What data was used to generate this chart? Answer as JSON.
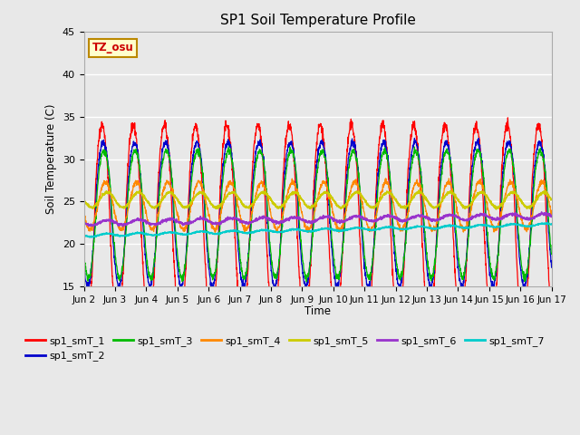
{
  "title": "SP1 Soil Temperature Profile",
  "xlabel": "Time",
  "ylabel": "Soil Temperature (C)",
  "ylim": [
    15,
    45
  ],
  "xlim": [
    0,
    15
  ],
  "x_tick_labels": [
    "Jun 2",
    "Jun 3",
    "Jun 4",
    "Jun 5",
    "Jun 6",
    "Jun 7",
    "Jun 8",
    "Jun 9",
    "Jun 10",
    "Jun 11",
    "Jun 12",
    "Jun 13",
    "Jun 14",
    "Jun 15",
    "Jun 16",
    "Jun 17"
  ],
  "annotation_text": "TZ_osu",
  "annotation_color": "#cc0000",
  "annotation_bg": "#ffffcc",
  "annotation_border": "#bb8800",
  "series_colors": {
    "sp1_smT_1": "#ff0000",
    "sp1_smT_2": "#0000cc",
    "sp1_smT_3": "#00bb00",
    "sp1_smT_4": "#ff8800",
    "sp1_smT_5": "#cccc00",
    "sp1_smT_6": "#9933cc",
    "sp1_smT_7": "#00cccc"
  },
  "fig_facecolor": "#e8e8e8",
  "ax_facecolor": "#e8e8e8",
  "grid_color": "#ffffff",
  "figsize": [
    6.4,
    4.8
  ],
  "dpi": 100
}
